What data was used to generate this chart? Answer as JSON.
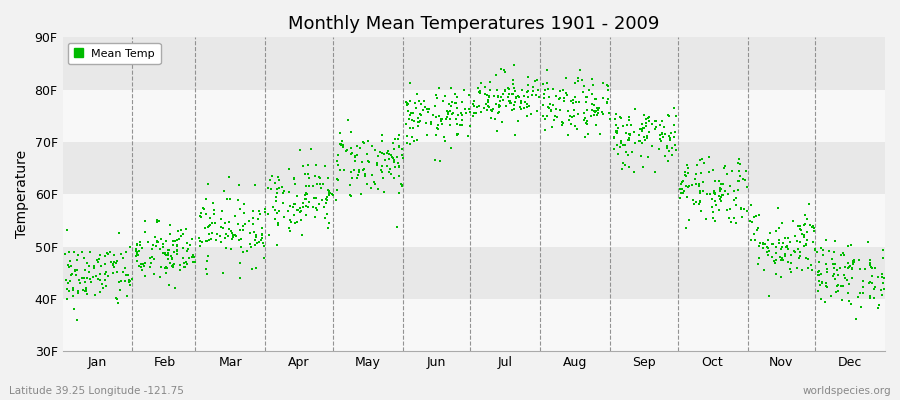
{
  "title": "Monthly Mean Temperatures 1901 - 2009",
  "ylabel": "Temperature",
  "xlabel_bottom_left": "Latitude 39.25 Longitude -121.75",
  "xlabel_bottom_right": "worldspecies.org",
  "legend_label": "Mean Temp",
  "dot_color": "#00bb00",
  "bg_color": "#f2f2f2",
  "band_light": "#f8f8f8",
  "band_dark": "#e8e8e8",
  "ylim": [
    30,
    90
  ],
  "ytick_labels": [
    "30F",
    "40F",
    "50F",
    "60F",
    "70F",
    "80F",
    "90F"
  ],
  "ytick_values": [
    30,
    40,
    50,
    60,
    70,
    80,
    90
  ],
  "months": [
    "Jan",
    "Feb",
    "Mar",
    "Apr",
    "May",
    "Jun",
    "Jul",
    "Aug",
    "Sep",
    "Oct",
    "Nov",
    "Dec"
  ],
  "month_tick_positions": [
    15.5,
    45.5,
    74.5,
    105.0,
    135.5,
    166.0,
    196.5,
    227.5,
    258.0,
    288.5,
    319.0,
    349.5
  ],
  "month_boundaries": [
    31,
    59,
    90,
    120,
    151,
    181,
    212,
    243,
    273,
    304,
    334
  ],
  "monthly_means": [
    44.5,
    48.5,
    53.5,
    59.5,
    66.0,
    74.5,
    78.5,
    76.5,
    71.0,
    61.0,
    50.5,
    44.5
  ],
  "monthly_stds": [
    3.2,
    3.0,
    3.5,
    3.5,
    3.5,
    2.8,
    2.5,
    2.8,
    3.0,
    3.5,
    3.5,
    3.2
  ],
  "n_years": 109,
  "seed": 42,
  "xlim": [
    0,
    365
  ],
  "dot_size": 3
}
